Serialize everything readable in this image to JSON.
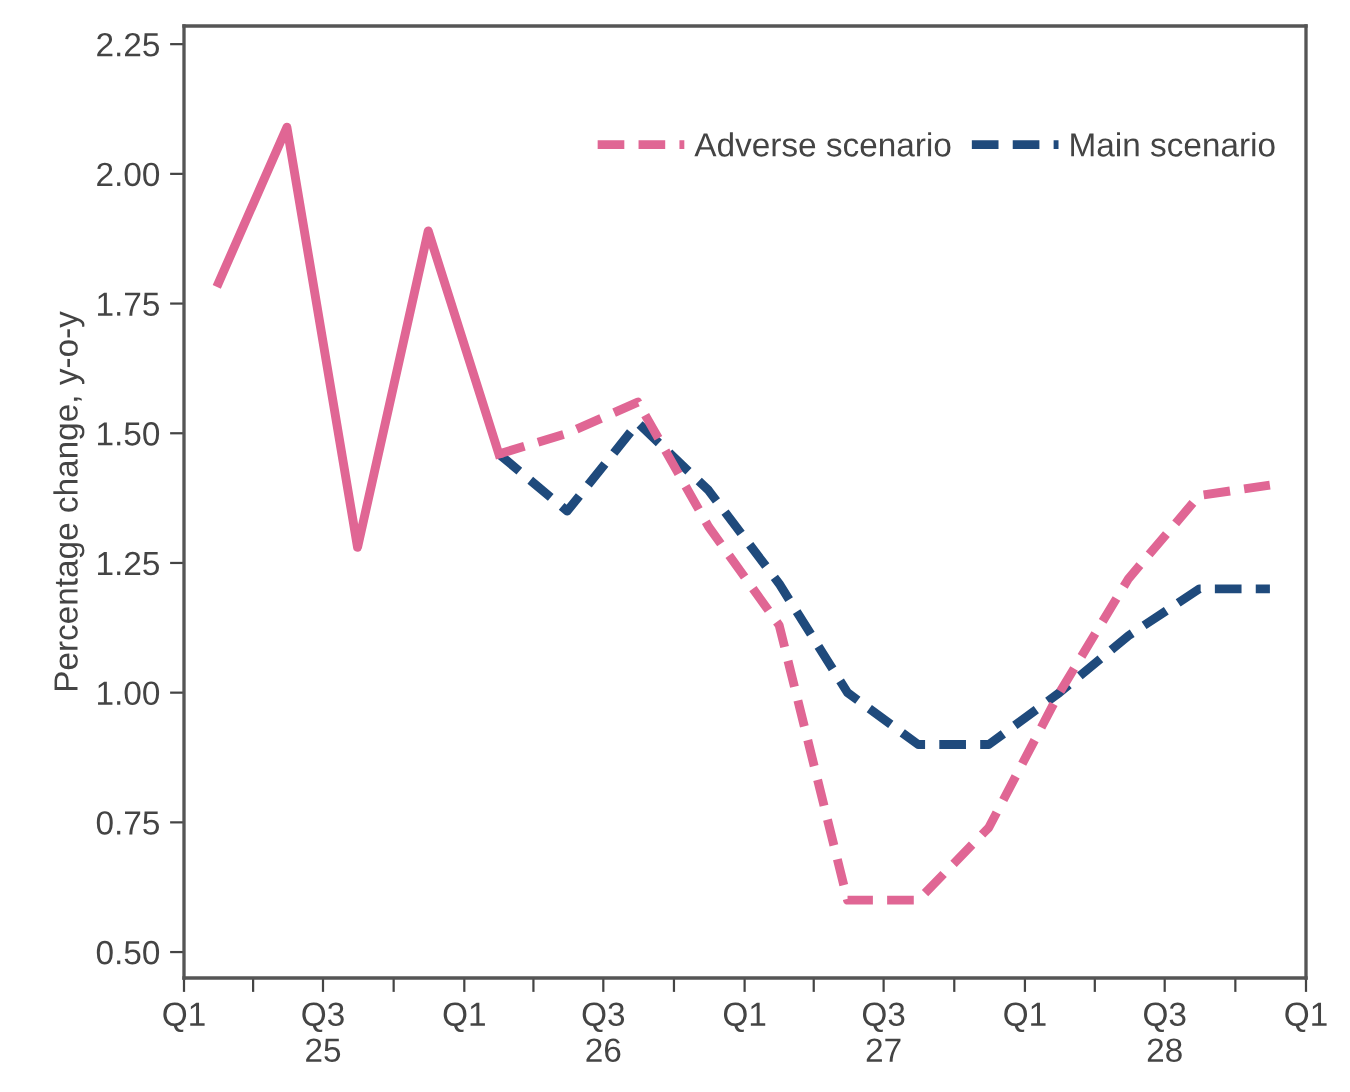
{
  "chart_data": {
    "type": "line",
    "ylabel": "Percentage change, y-o-y",
    "x": [
      "2025-02-15",
      "2025-05-15",
      "2025-08-15",
      "2025-11-15",
      "2026-02-15",
      "2026-05-15",
      "2026-08-15",
      "2026-11-15",
      "2027-02-15",
      "2027-05-15",
      "2027-08-15",
      "2027-11-15",
      "2028-02-15",
      "2028-05-15",
      "2028-08-15",
      "2028-11-15"
    ],
    "series": [
      {
        "name": "Main scenario",
        "color": "#1f4a7c",
        "line_style": "dashed",
        "values": [
          null,
          null,
          null,
          null,
          1.46,
          1.35,
          1.52,
          1.39,
          1.21,
          1.0,
          0.9,
          0.9,
          1.0,
          1.11,
          1.2,
          1.2
        ]
      },
      {
        "name": "Adverse scenario",
        "color": "#e06694",
        "line_style": "dashed",
        "values": [
          null,
          null,
          null,
          null,
          1.46,
          1.5,
          1.56,
          1.32,
          1.13,
          0.6,
          0.6,
          0.74,
          1.0,
          1.22,
          1.38,
          1.4
        ]
      },
      {
        "color": "#e06694",
        "line_style": "solid",
        "values": [
          1.79,
          2.09,
          1.28,
          1.89,
          1.46,
          null,
          null,
          null,
          null,
          null,
          null,
          null,
          null,
          null,
          null,
          null
        ]
      }
    ],
    "xlim": [
      "2025-01-01",
      "2029-01-01"
    ],
    "xticks": [
      {
        "value": "2025-01-01",
        "label": "Q1"
      },
      {
        "value": "2025-04-01",
        "label": null
      },
      {
        "value": "2025-07-01",
        "label": "Q3\n25"
      },
      {
        "value": "2025-10-01",
        "label": null
      },
      {
        "value": "2026-01-01",
        "label": "Q1"
      },
      {
        "value": "2026-04-01",
        "label": null
      },
      {
        "value": "2026-07-01",
        "label": "Q3\n26"
      },
      {
        "value": "2026-10-01",
        "label": null
      },
      {
        "value": "2027-01-01",
        "label": "Q1"
      },
      {
        "value": "2027-04-01",
        "label": null
      },
      {
        "value": "2027-07-01",
        "label": "Q3\n27"
      },
      {
        "value": "2027-10-01",
        "label": null
      },
      {
        "value": "2028-01-01",
        "label": "Q1"
      },
      {
        "value": "2028-04-01",
        "label": null
      },
      {
        "value": "2028-07-01",
        "label": "Q3\n28"
      },
      {
        "value": "2028-10-01",
        "label": null
      },
      {
        "value": "2029-01-01",
        "label": "Q1"
      }
    ],
    "ylim": [
      0.45,
      2.285
    ],
    "yticks": [
      {
        "value": 0.5,
        "label": "0.50"
      },
      {
        "value": 0.75,
        "label": "0.75"
      },
      {
        "value": 1.0,
        "label": "1.00"
      },
      {
        "value": 1.25,
        "label": "1.25"
      },
      {
        "value": 1.5,
        "label": "1.50"
      },
      {
        "value": 1.75,
        "label": "1.75"
      },
      {
        "value": 2.0,
        "label": "2.00"
      },
      {
        "value": 2.25,
        "label": "2.25"
      }
    ],
    "legend": "top right",
    "grid": false
  }
}
